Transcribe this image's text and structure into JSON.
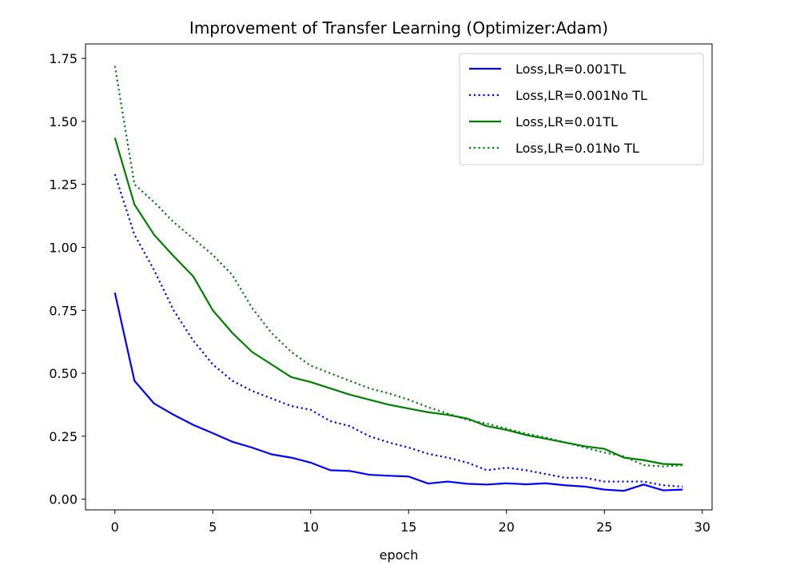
{
  "chart_data": {
    "type": "line",
    "title": "Improvement of Transfer Learning (Optimizer:Adam)",
    "xlabel": "epoch",
    "ylabel": "",
    "xlim": [
      -1.5,
      30.5
    ],
    "ylim": [
      -0.0425,
      1.8075
    ],
    "xticks": [
      "0",
      "5",
      "10",
      "15",
      "20",
      "25",
      "30"
    ],
    "yticks": [
      "0.00",
      "0.25",
      "0.50",
      "0.75",
      "1.00",
      "1.25",
      "1.50",
      "1.75"
    ],
    "grid": false,
    "legend_position": "top-right",
    "x": [
      0,
      1,
      2,
      3,
      4,
      5,
      6,
      7,
      8,
      9,
      10,
      11,
      12,
      13,
      14,
      15,
      16,
      17,
      18,
      19,
      20,
      21,
      22,
      23,
      24,
      25,
      26,
      27,
      28,
      29
    ],
    "series": [
      {
        "name": "Loss,LR=0.001TL",
        "color": "#0000ff",
        "style": "solid",
        "values": [
          0.82,
          0.47,
          0.38,
          0.335,
          0.295,
          0.262,
          0.228,
          0.205,
          0.178,
          0.165,
          0.145,
          0.115,
          0.112,
          0.097,
          0.093,
          0.09,
          0.062,
          0.07,
          0.061,
          0.058,
          0.063,
          0.059,
          0.063,
          0.055,
          0.05,
          0.038,
          0.033,
          0.058,
          0.035,
          0.038
        ]
      },
      {
        "name": "Loss,LR=0.001No TL",
        "color": "#0000ff",
        "style": "dotted",
        "values": [
          1.29,
          1.05,
          0.91,
          0.75,
          0.63,
          0.535,
          0.47,
          0.43,
          0.4,
          0.37,
          0.355,
          0.31,
          0.29,
          0.25,
          0.225,
          0.205,
          0.18,
          0.165,
          0.145,
          0.115,
          0.125,
          0.115,
          0.1,
          0.085,
          0.085,
          0.07,
          0.07,
          0.07,
          0.055,
          0.05
        ]
      },
      {
        "name": "Loss,LR=0.01TL",
        "color": "#008000",
        "style": "solid",
        "values": [
          1.435,
          1.17,
          1.05,
          0.965,
          0.885,
          0.75,
          0.66,
          0.585,
          0.535,
          0.485,
          0.465,
          0.44,
          0.415,
          0.395,
          0.375,
          0.36,
          0.345,
          0.335,
          0.32,
          0.29,
          0.275,
          0.255,
          0.24,
          0.225,
          0.21,
          0.2,
          0.165,
          0.155,
          0.14,
          0.137
        ]
      },
      {
        "name": "Loss,LR=0.01No TL",
        "color": "#008000",
        "style": "dotted",
        "values": [
          1.72,
          1.25,
          1.18,
          1.1,
          1.035,
          0.97,
          0.89,
          0.76,
          0.66,
          0.585,
          0.53,
          0.5,
          0.47,
          0.44,
          0.42,
          0.395,
          0.365,
          0.34,
          0.315,
          0.3,
          0.28,
          0.26,
          0.245,
          0.225,
          0.205,
          0.185,
          0.17,
          0.135,
          0.13,
          0.135
        ]
      }
    ]
  }
}
